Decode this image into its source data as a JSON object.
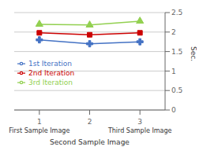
{
  "chart_data": {
    "type": "line",
    "x": [
      3,
      2,
      1
    ],
    "series": [
      {
        "name": "1st Iteration",
        "color": "#4472C4",
        "marker": "plus",
        "values": [
          1.75,
          1.7,
          1.8
        ]
      },
      {
        "name": "2nd Iteration",
        "color": "#CC0000",
        "marker": "square",
        "values": [
          1.98,
          1.93,
          1.98
        ]
      },
      {
        "name": "3rd Iteration",
        "color": "#92D050",
        "marker": "triangle",
        "values": [
          2.28,
          2.18,
          2.2
        ]
      }
    ],
    "xlabel": "Second Sample Image",
    "ylabel": "Sec.",
    "annotations": [
      {
        "text": "Third Sample Image",
        "x": 3
      },
      {
        "text": "First Sample Image",
        "x": 1
      }
    ],
    "xlim": [
      0.5,
      3.5
    ],
    "xticks": [
      3,
      2,
      1
    ],
    "ylim": [
      0,
      2.5
    ],
    "yticks": [
      0,
      0.5,
      1,
      1.5,
      2,
      2.5
    ],
    "grid": true,
    "legend": "left"
  }
}
